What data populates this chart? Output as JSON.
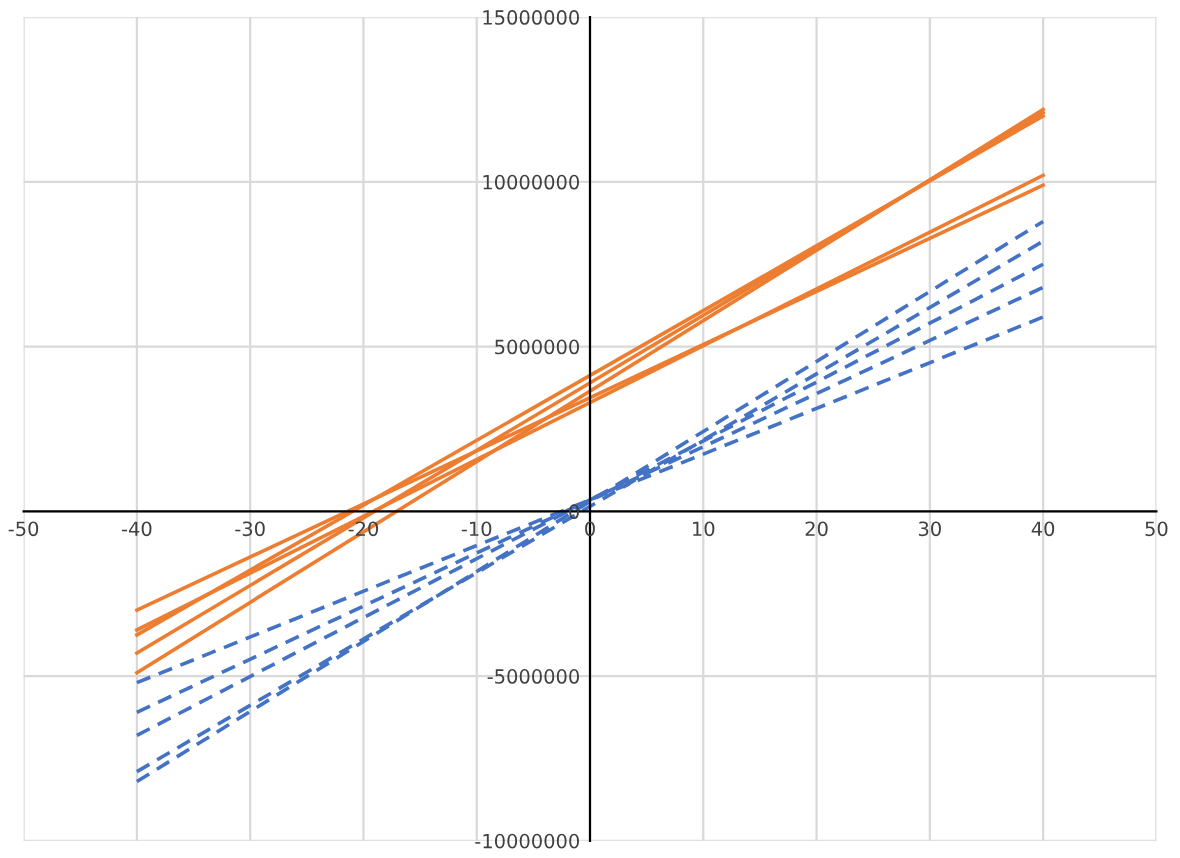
{
  "chart_data": {
    "type": "line",
    "xlim": [
      -50,
      50
    ],
    "ylim": [
      -10000000,
      15000000
    ],
    "xticks": [
      -50,
      -40,
      -30,
      -20,
      -10,
      0,
      10,
      20,
      30,
      40,
      50
    ],
    "yticks": [
      {
        "value": -10000000,
        "label": "-10000000"
      },
      {
        "value": -5000000,
        "label": "-5000000"
      },
      0,
      5000000,
      10000000,
      15000000
    ],
    "grid": true,
    "marker": "none",
    "x": [
      -40,
      40
    ],
    "series": [
      {
        "color": "#ed7d31",
        "line_style": "solid",
        "values": [
          -4900000,
          12200000
        ]
      },
      {
        "color": "#ed7d31",
        "line_style": "solid",
        "values": [
          -4300000,
          12100000
        ]
      },
      {
        "color": "#ed7d31",
        "line_style": "solid",
        "values": [
          -3750000,
          12000000
        ]
      },
      {
        "color": "#ed7d31",
        "line_style": "solid",
        "values": [
          -3600000,
          10200000
        ]
      },
      {
        "color": "#ed7d31",
        "line_style": "solid",
        "values": [
          -3000000,
          9900000
        ]
      },
      {
        "color": "#4472c4",
        "line_style": "dashed",
        "values": [
          -8200000,
          8800000
        ]
      },
      {
        "color": "#4472c4",
        "line_style": "dashed",
        "values": [
          -7900000,
          8200000
        ]
      },
      {
        "color": "#4472c4",
        "line_style": "dashed",
        "values": [
          -6800000,
          7500000
        ]
      },
      {
        "color": "#4472c4",
        "line_style": "dashed",
        "values": [
          -6100000,
          6800000
        ]
      },
      {
        "color": "#4472c4",
        "line_style": "dashed",
        "values": [
          -5200000,
          5900000
        ]
      }
    ]
  }
}
